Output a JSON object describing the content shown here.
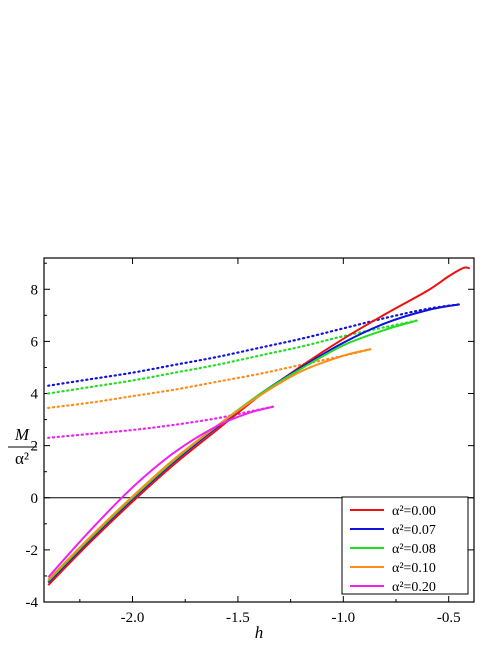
{
  "chart_data": {
    "type": "line",
    "xlabel": "h",
    "ylabel_num": "M",
    "ylabel_den": "α²",
    "xlim": [
      -2.42,
      -0.38
    ],
    "ylim": [
      -4,
      9.2
    ],
    "xticks": [
      -2.0,
      -1.5,
      -1.0,
      -0.5
    ],
    "xtick_labels": [
      "-2.0",
      "-1.5",
      "-1.0",
      "-0.5"
    ],
    "yticks": [
      -4,
      -2,
      0,
      2,
      4,
      6,
      8
    ],
    "ytick_labels": [
      "-4",
      "-2",
      "0",
      "2",
      "4",
      "6",
      "8"
    ],
    "zero_line": true,
    "grid": false,
    "legend_position": "bottom-right",
    "series": [
      {
        "name": "α²=0.00",
        "color": "#ee1111",
        "solid": [
          [
            -2.4,
            -3.35
          ],
          [
            -2.2,
            -1.7
          ],
          [
            -2.0,
            -0.15
          ],
          [
            -1.8,
            1.3
          ],
          [
            -1.6,
            2.6
          ],
          [
            -1.4,
            3.9
          ],
          [
            -1.2,
            5.05
          ],
          [
            -1.0,
            6.1
          ],
          [
            -0.8,
            7.05
          ],
          [
            -0.6,
            7.95
          ],
          [
            -0.5,
            8.5
          ],
          [
            -0.43,
            8.82
          ],
          [
            -0.4,
            8.8
          ]
        ],
        "dotted": []
      },
      {
        "name": "α²=0.07",
        "color": "#1111dd",
        "solid": [
          [
            -2.4,
            -3.25
          ],
          [
            -2.2,
            -1.6
          ],
          [
            -2.0,
            -0.05
          ],
          [
            -1.8,
            1.4
          ],
          [
            -1.6,
            2.7
          ],
          [
            -1.4,
            3.95
          ],
          [
            -1.2,
            5.0
          ],
          [
            -1.0,
            5.95
          ],
          [
            -0.8,
            6.7
          ],
          [
            -0.6,
            7.2
          ],
          [
            -0.45,
            7.42
          ]
        ],
        "dotted": [
          [
            -2.4,
            4.3
          ],
          [
            -2.2,
            4.55
          ],
          [
            -2.0,
            4.8
          ],
          [
            -1.8,
            5.1
          ],
          [
            -1.6,
            5.4
          ],
          [
            -1.4,
            5.75
          ],
          [
            -1.2,
            6.1
          ],
          [
            -1.0,
            6.5
          ],
          [
            -0.8,
            6.9
          ],
          [
            -0.6,
            7.25
          ],
          [
            -0.45,
            7.42
          ]
        ]
      },
      {
        "name": "α²=0.08",
        "color": "#22dd22",
        "solid": [
          [
            -2.4,
            -3.2
          ],
          [
            -2.2,
            -1.55
          ],
          [
            -2.0,
            0.0
          ],
          [
            -1.8,
            1.45
          ],
          [
            -1.6,
            2.75
          ],
          [
            -1.4,
            3.95
          ],
          [
            -1.2,
            4.95
          ],
          [
            -1.0,
            5.85
          ],
          [
            -0.8,
            6.45
          ],
          [
            -0.65,
            6.8
          ]
        ],
        "dotted": [
          [
            -2.4,
            4.0
          ],
          [
            -2.2,
            4.25
          ],
          [
            -2.0,
            4.5
          ],
          [
            -1.8,
            4.8
          ],
          [
            -1.6,
            5.1
          ],
          [
            -1.4,
            5.45
          ],
          [
            -1.2,
            5.8
          ],
          [
            -1.0,
            6.2
          ],
          [
            -0.8,
            6.55
          ],
          [
            -0.65,
            6.8
          ]
        ]
      },
      {
        "name": "α²=0.10",
        "color": "#ff8c1a",
        "solid": [
          [
            -2.4,
            -3.15
          ],
          [
            -2.2,
            -1.5
          ],
          [
            -2.0,
            0.05
          ],
          [
            -1.8,
            1.5
          ],
          [
            -1.6,
            2.75
          ],
          [
            -1.4,
            3.9
          ],
          [
            -1.2,
            4.85
          ],
          [
            -1.0,
            5.45
          ],
          [
            -0.87,
            5.7
          ]
        ],
        "dotted": [
          [
            -2.4,
            3.45
          ],
          [
            -2.2,
            3.65
          ],
          [
            -2.0,
            3.9
          ],
          [
            -1.8,
            4.15
          ],
          [
            -1.6,
            4.45
          ],
          [
            -1.4,
            4.75
          ],
          [
            -1.2,
            5.1
          ],
          [
            -1.0,
            5.45
          ],
          [
            -0.87,
            5.7
          ]
        ]
      },
      {
        "name": "α²=0.20",
        "color": "#ee22ee",
        "solid": [
          [
            -2.4,
            -3.05
          ],
          [
            -2.2,
            -1.25
          ],
          [
            -2.0,
            0.4
          ],
          [
            -1.8,
            1.75
          ],
          [
            -1.6,
            2.75
          ],
          [
            -1.45,
            3.25
          ],
          [
            -1.33,
            3.5
          ]
        ],
        "dotted": [
          [
            -2.4,
            2.3
          ],
          [
            -2.2,
            2.45
          ],
          [
            -2.0,
            2.6
          ],
          [
            -1.8,
            2.8
          ],
          [
            -1.6,
            3.05
          ],
          [
            -1.45,
            3.3
          ],
          [
            -1.33,
            3.5
          ]
        ]
      }
    ]
  }
}
